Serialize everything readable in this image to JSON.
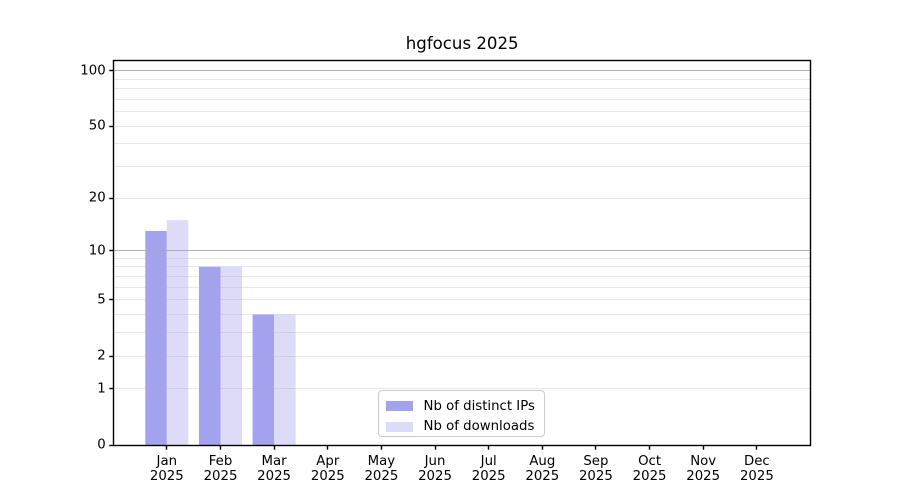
{
  "chart_data": {
    "type": "bar",
    "title": "hgfocus 2025",
    "categories": [
      "Jan",
      "Feb",
      "Mar",
      "Apr",
      "May",
      "Jun",
      "Jul",
      "Aug",
      "Sep",
      "Oct",
      "Nov",
      "Dec"
    ],
    "x_tick_second_line": "2025",
    "series": [
      {
        "name": "Nb of distinct IPs",
        "color": "#a2a2ef",
        "values": [
          13,
          8,
          4,
          0,
          0,
          0,
          0,
          0,
          0,
          0,
          0,
          0
        ]
      },
      {
        "name": "Nb of downloads",
        "color": "#dcdcf8",
        "values": [
          15,
          8,
          4,
          0,
          0,
          0,
          0,
          0,
          0,
          0,
          0,
          0
        ]
      }
    ],
    "xlabel": "",
    "ylabel": "",
    "y_ticks": [
      0,
      1,
      2,
      5,
      10,
      20,
      50,
      100
    ],
    "y_scale": "log10(value+1)",
    "ylim": [
      0,
      114
    ],
    "xlim": [
      -1,
      12
    ],
    "grid": {
      "minor_lines": [
        1,
        2,
        3,
        4,
        5,
        6,
        7,
        8,
        9,
        20,
        30,
        40,
        50,
        60,
        70,
        80,
        90
      ],
      "major_lines": [
        10,
        100
      ],
      "minor_color": "#b0b0b0",
      "major_color": "#a8a8a8"
    },
    "legend_position": "lower center",
    "colors": {
      "background": "#ffffff",
      "spine": "#000000",
      "text": "#000000"
    }
  }
}
